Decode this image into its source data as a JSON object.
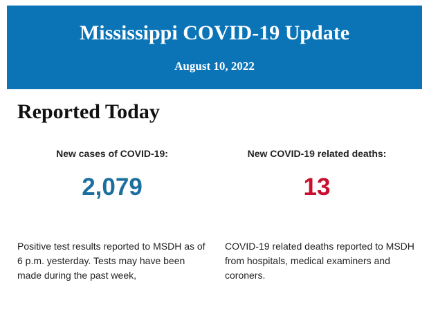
{
  "header": {
    "title": "Mississippi COVID-19 Update",
    "date": "August 10, 2022"
  },
  "section": {
    "heading": "Reported Today"
  },
  "stats": [
    {
      "label": "New cases of COVID-19:",
      "value": "2,079",
      "color": "#1b6f9e",
      "description": "Positive test results reported to MSDH as of 6 p.m. yesterday. Tests may have been made during the past week,"
    },
    {
      "label": "New COVID-19 related deaths:",
      "value": "13",
      "color": "#c8102e",
      "description": "COVID-19 related deaths reported to MSDH from hospitals, medical examiners and coroners."
    }
  ],
  "colors": {
    "header_background": "#0b74b7"
  }
}
